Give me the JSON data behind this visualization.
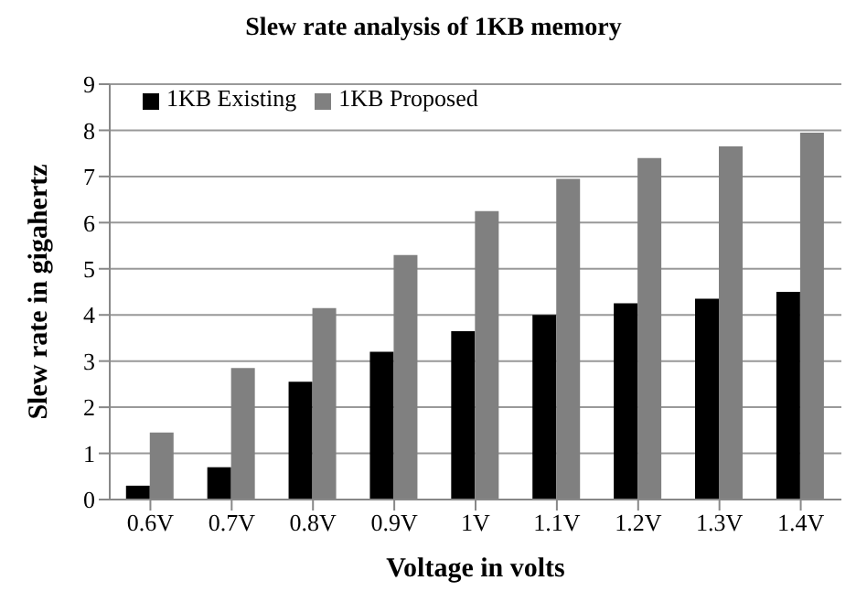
{
  "chart_data": {
    "type": "bar",
    "title": "Slew rate analysis of 1KB memory",
    "xlabel": "Voltage in volts",
    "ylabel": "Slew rate in gigahertz",
    "categories": [
      "0.6V",
      "0.7V",
      "0.8V",
      "0.9V",
      "1V",
      "1.1V",
      "1.2V",
      "1.3V",
      "1.4V"
    ],
    "series": [
      {
        "name": "1KB Existing",
        "color": "#000000",
        "values": [
          0.3,
          0.7,
          2.55,
          3.2,
          3.65,
          4.0,
          4.25,
          4.35,
          4.5
        ]
      },
      {
        "name": "1KB Proposed",
        "color": "#808080",
        "values": [
          1.45,
          2.85,
          4.15,
          5.3,
          6.25,
          6.95,
          7.4,
          7.65,
          7.95
        ]
      }
    ],
    "ylim": [
      0,
      9
    ],
    "yticks": [
      0,
      1,
      2,
      3,
      4,
      5,
      6,
      7,
      8,
      9
    ],
    "grid": "y",
    "legend": "top left"
  }
}
